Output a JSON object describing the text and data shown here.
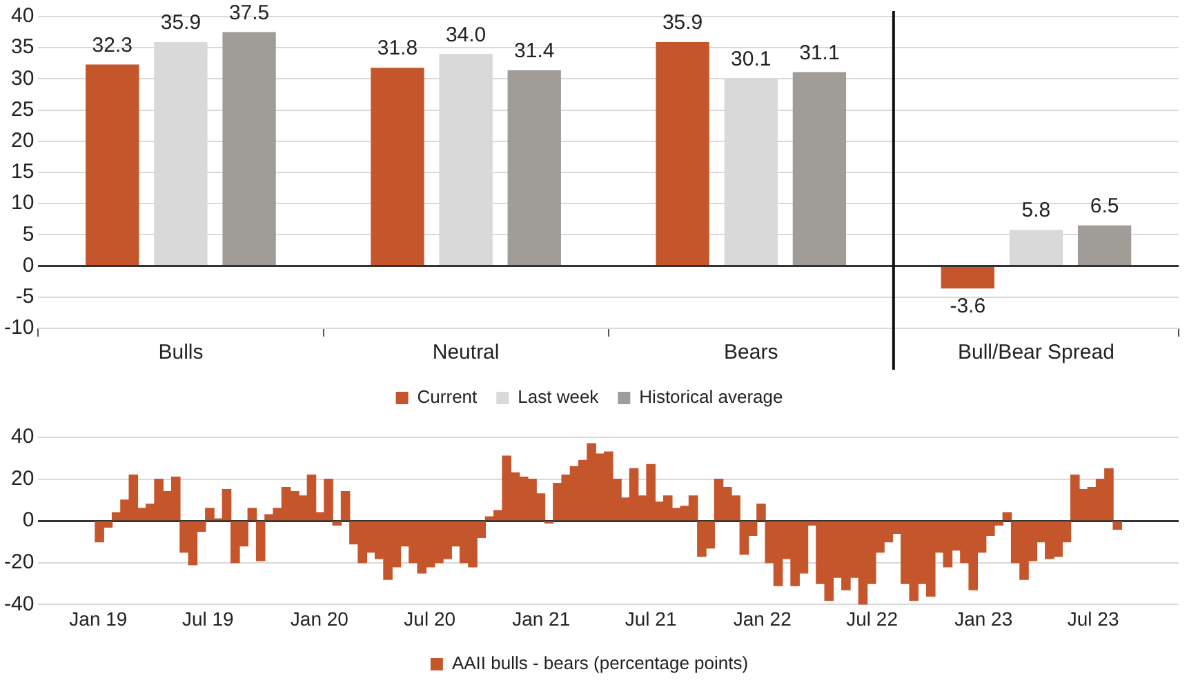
{
  "chart_data": [
    {
      "type": "bar",
      "categories": [
        "Bulls",
        "Neutral",
        "Bears",
        "Bull/Bear Spread"
      ],
      "series": [
        {
          "name": "Current",
          "color": "#c5562c",
          "values": [
            32.3,
            31.8,
            35.9,
            -3.6
          ],
          "value_labels": [
            "32.3",
            "31.8",
            "35.9",
            "-3.6"
          ]
        },
        {
          "name": "Last week",
          "color": "#d9d9d9",
          "values": [
            35.9,
            34.0,
            30.1,
            5.8
          ],
          "value_labels": [
            "35.9",
            "34.0",
            "30.1",
            "5.8"
          ]
        },
        {
          "name": "Historical average",
          "color": "#a09c98",
          "values": [
            37.5,
            31.4,
            31.1,
            6.5
          ],
          "value_labels": [
            "37.5",
            "31.4",
            "31.1",
            "6.5"
          ]
        }
      ],
      "ylim": [
        -10,
        40
      ],
      "yticks": [
        -10,
        -5,
        0,
        5,
        10,
        15,
        20,
        25,
        30,
        35,
        40
      ],
      "grid": "y",
      "legend": "bottom",
      "ref_lines": [
        {
          "axis": "x",
          "value": "Bull/Bear Spread",
          "color": "#111111"
        }
      ]
    },
    {
      "type": "bar",
      "x": [
        "2019-01-03",
        "2019-01-17",
        "2019-01-31",
        "2019-02-14",
        "2019-02-28",
        "2019-03-14",
        "2019-03-28",
        "2019-04-11",
        "2019-04-25",
        "2019-05-09",
        "2019-05-23",
        "2019-06-06",
        "2019-06-20",
        "2019-07-04",
        "2019-07-18",
        "2019-08-01",
        "2019-08-15",
        "2019-08-29",
        "2019-09-12",
        "2019-09-26",
        "2019-10-10",
        "2019-10-24",
        "2019-11-07",
        "2019-11-21",
        "2019-12-05",
        "2019-12-19",
        "2020-01-02",
        "2020-01-16",
        "2020-01-30",
        "2020-02-13",
        "2020-02-27",
        "2020-03-12",
        "2020-03-26",
        "2020-04-09",
        "2020-04-23",
        "2020-05-07",
        "2020-05-21",
        "2020-06-04",
        "2020-06-18",
        "2020-07-02",
        "2020-07-16",
        "2020-07-30",
        "2020-08-13",
        "2020-08-27",
        "2020-09-10",
        "2020-09-24",
        "2020-10-08",
        "2020-10-22",
        "2020-11-05",
        "2020-11-19",
        "2020-12-03",
        "2020-12-17",
        "2020-12-31",
        "2021-01-14",
        "2021-01-28",
        "2021-02-11",
        "2021-02-25",
        "2021-03-11",
        "2021-03-25",
        "2021-04-08",
        "2021-04-22",
        "2021-05-06",
        "2021-05-20",
        "2021-06-03",
        "2021-06-17",
        "2021-07-01",
        "2021-07-15",
        "2021-07-29",
        "2021-08-12",
        "2021-08-26",
        "2021-09-09",
        "2021-09-23",
        "2021-10-07",
        "2021-10-21",
        "2021-11-04",
        "2021-11-18",
        "2021-12-02",
        "2021-12-16",
        "2021-12-30",
        "2022-01-13",
        "2022-01-27",
        "2022-02-10",
        "2022-02-24",
        "2022-03-10",
        "2022-03-24",
        "2022-04-07",
        "2022-04-21",
        "2022-05-05",
        "2022-05-19",
        "2022-06-02",
        "2022-06-16",
        "2022-06-30",
        "2022-07-14",
        "2022-07-28",
        "2022-08-11",
        "2022-08-25",
        "2022-09-08",
        "2022-09-22",
        "2022-10-06",
        "2022-10-20",
        "2022-11-03",
        "2022-11-17",
        "2022-12-01",
        "2022-12-15",
        "2022-12-29",
        "2023-01-12",
        "2023-01-26",
        "2023-02-09",
        "2023-02-23",
        "2023-03-09",
        "2023-03-23",
        "2023-04-06",
        "2023-04-20",
        "2023-05-04",
        "2023-05-18",
        "2023-06-01",
        "2023-06-15",
        "2023-06-29",
        "2023-07-13",
        "2023-07-27",
        "2023-08-10"
      ],
      "series": [
        {
          "name": "AAII bulls - bears (percentage points)",
          "color": "#c5562c",
          "values": [
            -10,
            -3,
            4,
            10,
            22,
            6,
            8,
            20,
            14,
            21,
            -15,
            -21,
            -5,
            6,
            1,
            15,
            -20,
            -12,
            6,
            -19,
            3,
            6,
            16,
            14,
            12,
            22,
            4,
            20,
            -2,
            14,
            -11,
            -20,
            -15,
            -18,
            -28,
            -22,
            -12,
            -20,
            -25,
            -22,
            -20,
            -18,
            -12,
            -20,
            -22,
            -8,
            2,
            5,
            31,
            23,
            21,
            20,
            13,
            -1,
            18,
            22,
            26,
            29,
            37,
            32,
            33,
            20,
            11,
            25,
            12,
            27,
            9,
            12,
            6,
            7,
            12,
            -17,
            -13,
            20,
            16,
            12,
            -16,
            -7,
            8,
            -20,
            -31,
            -18,
            -31,
            -25,
            -2,
            -30,
            -38,
            -27,
            -33,
            -27,
            -40,
            -30,
            -15,
            -10,
            -6,
            -30,
            -38,
            -30,
            -36,
            -15,
            -22,
            -14,
            -20,
            -33,
            -15,
            -7,
            -2,
            4,
            -20,
            -28,
            -19,
            -10,
            -18,
            -17,
            -10,
            22,
            15,
            16,
            20,
            25,
            -4
          ]
        }
      ],
      "xlim": [
        "2018-12-27",
        "2023-08-17"
      ],
      "xticks": [
        {
          "value": "2019-01-01",
          "label": "Jan 19"
        },
        {
          "value": "2019-07-01",
          "label": "Jul 19"
        },
        {
          "value": "2020-01-01",
          "label": "Jan 20"
        },
        {
          "value": "2020-07-01",
          "label": "Jul 20"
        },
        {
          "value": "2021-01-01",
          "label": "Jan 21"
        },
        {
          "value": "2021-07-01",
          "label": "Jul 21"
        },
        {
          "value": "2022-01-01",
          "label": "Jan 22"
        },
        {
          "value": "2022-07-01",
          "label": "Jul 22"
        },
        {
          "value": "2023-01-01",
          "label": "Jan 23"
        },
        {
          "value": "2023-07-01",
          "label": "Jul 23"
        }
      ],
      "ylim": [
        -40,
        40
      ],
      "yticks": [
        -40,
        -20,
        0,
        20,
        40
      ],
      "grid": "y",
      "legend": "bottom"
    }
  ]
}
